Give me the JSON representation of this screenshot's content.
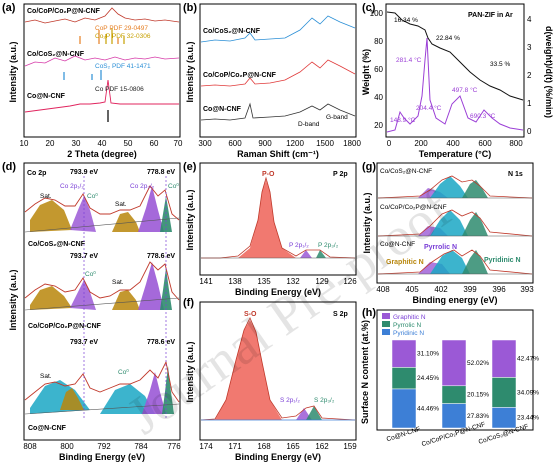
{
  "watermark": "Journal Pre-proof",
  "panel_a": {
    "letter": "(a)",
    "xlabel": "2 Theta (degree)",
    "ylabel": "Intensity (a.u.)",
    "xticks": [
      "10",
      "20",
      "30",
      "40",
      "50",
      "60",
      "70"
    ],
    "samples": [
      "Co/CoP/Co₂P@N-CNF",
      "Co/CoS₂@N-CNF",
      "Co@N-CNF"
    ],
    "refs": [
      "CoP PDF 29-0497",
      "Co₂P PDF 32-0306",
      "CoS₂ PDF 41-1471",
      "Co PDF 15-0806"
    ],
    "colors": {
      "cop": "#e67e22",
      "co2p": "#c6a000",
      "cos2": "#2b8fd6",
      "co": "#222222"
    }
  },
  "panel_b": {
    "letter": "(b)",
    "xlabel": "Raman Shift (cm⁻¹)",
    "ylabel": "Intensity (a.u.)",
    "xticks": [
      "300",
      "600",
      "900",
      "1200",
      "1500",
      "1800"
    ],
    "samples": [
      "Co/CoS₂@N-CNF",
      "Co/CoP/Co₂P@N-CNF",
      "Co@N-CNF"
    ],
    "bands": [
      "D-band",
      "G-band"
    ]
  },
  "panel_c": {
    "letter": "(c)",
    "title": "PAN-ZIF in Ar",
    "xlabel": "Temperature (°C)",
    "ylabel_left": "Weight (%)",
    "ylabel_right": "d(weight)/d(t) (%/min)",
    "xticks": [
      "0",
      "200",
      "400",
      "600",
      "800"
    ],
    "yticks_left": [
      "20",
      "40",
      "60",
      "80",
      "100"
    ],
    "yticks_right": [
      "0",
      "1",
      "2",
      "3",
      "4"
    ],
    "percents": [
      "16.34 %",
      "22.84 %",
      "33.5 %"
    ],
    "temps": [
      "281.4 °C",
      "148.9 °C",
      "204.4 °C",
      "497.8 °C",
      "690.3 °C"
    ]
  },
  "panel_d": {
    "letter": "(d)",
    "title": "Co 2p",
    "xlabel": "Binding Energy (eV)",
    "ylabel": "Intensity (a.u.)",
    "xticks": [
      "808",
      "800",
      "792",
      "784",
      "776"
    ],
    "samples": [
      "Co/CoS₂@N-CNF",
      "Co/CoP/Co₂P@N-CNF",
      "Co@N-CNF"
    ],
    "peaks": {
      "p12": "793.9 eV",
      "p32": "778.8 eV",
      "p12b": "793.7 eV",
      "p32b": "778.6 eV",
      "p12c": "793.7 eV",
      "p32c": "778.6 eV"
    },
    "labels": {
      "co2p12": "Co 2p₁/₂",
      "co2p32": "Co 2p₃/₂",
      "co0": "Co⁰",
      "sat": "Sat."
    }
  },
  "panel_e": {
    "letter": "(e)",
    "title": "P 2p",
    "xlabel": "Binding Energy (eV)",
    "ylabel": "Intensity (a.u.)",
    "xticks": [
      "141",
      "138",
      "135",
      "132",
      "129",
      "126"
    ],
    "labels": {
      "po": "P-O",
      "p12": "P 2p₁/₂",
      "p32": "P 2p₃/₂"
    }
  },
  "panel_f": {
    "letter": "(f)",
    "title": "S 2p",
    "xlabel": "Binding Energy (eV)",
    "ylabel": "Intensity (a.u.)",
    "xticks": [
      "174",
      "171",
      "168",
      "165",
      "162",
      "159"
    ],
    "labels": {
      "so": "S-O",
      "s12": "S 2p₁/₂",
      "s32": "S 2p₃/₂"
    }
  },
  "panel_g": {
    "letter": "(g)",
    "title": "N 1s",
    "xlabel": "Binding energy (eV)",
    "ylabel": "Intensity (a.u.)",
    "xticks": [
      "408",
      "405",
      "402",
      "399",
      "396",
      "393"
    ],
    "samples": [
      "Co/CoS₂@N-CNF",
      "Co/CoP/Co₂P@N-CNF",
      "Co@N-CNF"
    ],
    "labels": {
      "graphitic": "Graphitic N",
      "pyrrolic": "Pyrrolic N",
      "pyridinic": "Pyridinic N"
    }
  },
  "panel_h": {
    "letter": "(h)",
    "ylabel": "Surface N content (at.%)",
    "legend": [
      "Graphitic N",
      "Pyrrolic N",
      "Pyridinic N"
    ],
    "colors": {
      "graphitic": "#9b59d6",
      "pyrrolic": "#2e8b6e",
      "pyridinic": "#3d7fd6"
    }
  },
  "chart_data": {
    "type": "bar",
    "categories": [
      "Co@N-CNF",
      "Co/CoP/Co₂P@N-CNF",
      "Co/CoS₂@N-CNF"
    ],
    "series": [
      {
        "name": "Pyridinic N",
        "values": [
          44.46,
          27.83,
          23.44
        ]
      },
      {
        "name": "Pyrrolic N",
        "values": [
          24.45,
          20.15,
          34.09
        ]
      },
      {
        "name": "Graphitic N",
        "values": [
          31.1,
          52.02,
          42.47
        ]
      }
    ],
    "value_labels": [
      [
        "44.46%",
        "24.45%",
        "31.10%"
      ],
      [
        "27.83%",
        "20.15%",
        "52.02%"
      ],
      [
        "23.44%",
        "34.09%",
        "42.47%"
      ]
    ],
    "ylim": [
      0,
      100
    ],
    "stacked": true
  }
}
